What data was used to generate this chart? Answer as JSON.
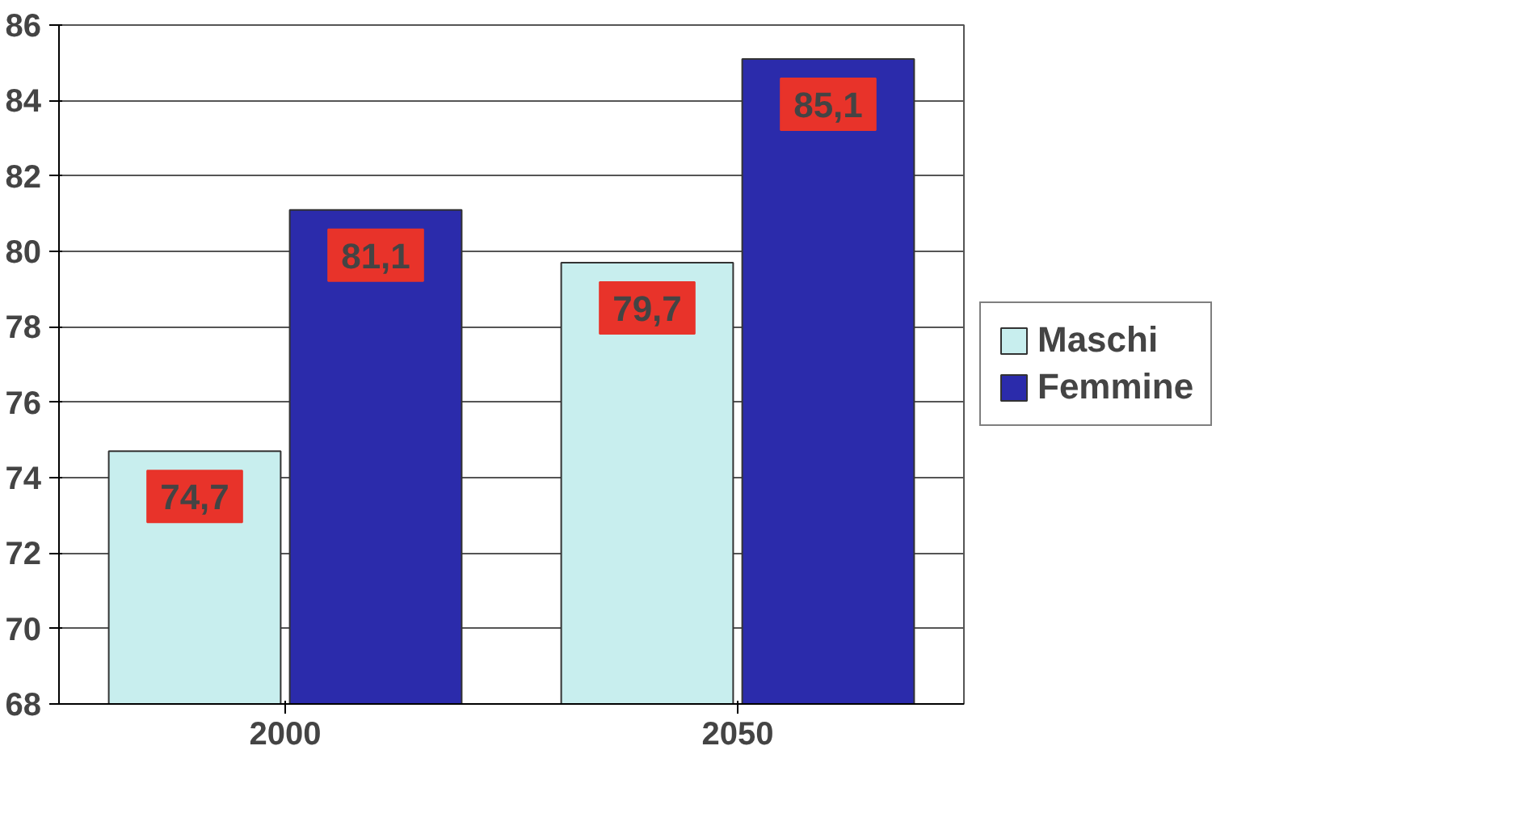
{
  "chart_data": {
    "type": "bar",
    "categories": [
      "2000",
      "2050"
    ],
    "series": [
      {
        "name": "Maschi",
        "color": "#c8eeee",
        "values": [
          74.7,
          79.7
        ],
        "value_labels": [
          "74,7",
          "79,7"
        ]
      },
      {
        "name": "Femmine",
        "color": "#2b2bab",
        "values": [
          81.1,
          85.1
        ],
        "value_labels": [
          "81,1",
          "85,1"
        ]
      }
    ],
    "ylim": [
      68,
      86
    ],
    "yticks": [
      68,
      70,
      72,
      74,
      76,
      78,
      80,
      82,
      84,
      86
    ],
    "grid": "y",
    "legend": "right"
  }
}
